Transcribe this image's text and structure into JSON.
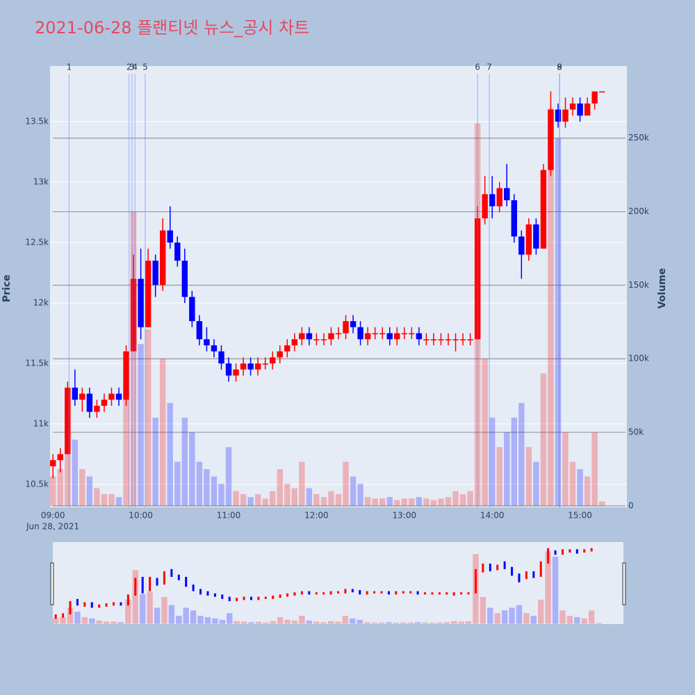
{
  "chart_data": {
    "type": "candlestick",
    "title": "2021-06-28 플랜티넷 뉴스_공시 차트",
    "y_label": "Price",
    "y2_label": "Volume",
    "x_date_label": "Jun 28, 2021",
    "increasing_color": "#ff0000",
    "decreasing_color": "#0000ff",
    "x": [
      "09:00",
      "09:05",
      "09:10",
      "09:15",
      "09:20",
      "09:25",
      "09:30",
      "09:35",
      "09:40",
      "09:45",
      "09:50",
      "09:55",
      "10:00",
      "10:05",
      "10:10",
      "10:15",
      "10:20",
      "10:25",
      "10:30",
      "10:35",
      "10:40",
      "10:45",
      "10:50",
      "10:55",
      "11:00",
      "11:05",
      "11:10",
      "11:15",
      "11:20",
      "11:25",
      "11:30",
      "11:35",
      "11:40",
      "11:45",
      "11:50",
      "11:55",
      "12:00",
      "12:05",
      "12:10",
      "12:15",
      "12:20",
      "12:25",
      "12:30",
      "12:35",
      "12:40",
      "12:45",
      "12:50",
      "12:55",
      "13:00",
      "13:05",
      "13:10",
      "13:15",
      "13:20",
      "13:25",
      "13:30",
      "13:35",
      "13:40",
      "13:45",
      "13:50",
      "13:55",
      "14:00",
      "14:05",
      "14:10",
      "14:15",
      "14:20",
      "14:25",
      "14:30",
      "14:35",
      "14:40",
      "14:45",
      "14:50",
      "14:55",
      "15:00",
      "15:05",
      "15:10",
      "15:15"
    ],
    "open": [
      10650,
      10700,
      10750,
      11300,
      11200,
      11250,
      11100,
      11150,
      11200,
      11250,
      11200,
      11600,
      12200,
      11800,
      12350,
      12150,
      12600,
      12500,
      12350,
      12050,
      11850,
      11700,
      11650,
      11600,
      11500,
      11400,
      11450,
      11500,
      11450,
      11500,
      11500,
      11550,
      11600,
      11650,
      11700,
      11750,
      11700,
      11700,
      11700,
      11750,
      11750,
      11850,
      11800,
      11700,
      11750,
      11750,
      11750,
      11700,
      11750,
      11750,
      11750,
      11700,
      11700,
      11700,
      11700,
      11700,
      11700,
      11700,
      11700,
      12700,
      12900,
      12800,
      12950,
      12850,
      12550,
      12400,
      12650,
      12450,
      13100,
      13600,
      13500,
      13600,
      13650,
      13550,
      13650,
      13750
    ],
    "high": [
      10750,
      10800,
      11350,
      11450,
      11300,
      11300,
      11200,
      11250,
      11300,
      11300,
      11650,
      12400,
      12450,
      12450,
      12400,
      12700,
      12800,
      12550,
      12450,
      12100,
      11900,
      11800,
      11700,
      11650,
      11550,
      11500,
      11550,
      11550,
      11550,
      11550,
      11600,
      11650,
      11700,
      11750,
      11800,
      11800,
      11750,
      11750,
      11800,
      11800,
      11900,
      11900,
      11850,
      11800,
      11800,
      11800,
      11800,
      11800,
      11800,
      11800,
      11800,
      11750,
      11750,
      11750,
      11750,
      11750,
      11750,
      11750,
      12800,
      13050,
      13050,
      13000,
      13150,
      12900,
      12600,
      12700,
      12700,
      13150,
      13750,
      13650,
      13700,
      13700,
      13700,
      13700,
      13750,
      13750
    ],
    "low": [
      10550,
      10600,
      10750,
      11150,
      11100,
      11050,
      11050,
      11100,
      11150,
      11150,
      11150,
      11600,
      11700,
      11800,
      12050,
      12100,
      12450,
      12300,
      12000,
      11800,
      11650,
      11600,
      11550,
      11450,
      11350,
      11350,
      11400,
      11400,
      11400,
      11450,
      11450,
      11500,
      11550,
      11600,
      11650,
      11650,
      11650,
      11650,
      11650,
      11700,
      11700,
      11750,
      11650,
      11650,
      11700,
      11700,
      11650,
      11650,
      11700,
      11700,
      11650,
      11650,
      11650,
      11650,
      11650,
      11600,
      11650,
      11650,
      11700,
      12650,
      12700,
      12750,
      12800,
      12500,
      12200,
      12350,
      12400,
      12450,
      13050,
      13450,
      13450,
      13550,
      13500,
      13550,
      13600,
      13750
    ],
    "close": [
      10700,
      10750,
      11300,
      11200,
      11250,
      11100,
      11150,
      11200,
      11250,
      11200,
      11600,
      12200,
      11800,
      12350,
      12150,
      12600,
      12500,
      12350,
      12050,
      11850,
      11700,
      11650,
      11600,
      11500,
      11400,
      11450,
      11500,
      11450,
      11500,
      11500,
      11550,
      11600,
      11650,
      11700,
      11750,
      11700,
      11700,
      11700,
      11750,
      11750,
      11850,
      11800,
      11700,
      11750,
      11750,
      11750,
      11700,
      11750,
      11750,
      11750,
      11700,
      11700,
      11700,
      11700,
      11700,
      11700,
      11700,
      11700,
      12700,
      12900,
      12800,
      12950,
      12850,
      12550,
      12400,
      12650,
      12450,
      13100,
      13600,
      13500,
      13600,
      13650,
      13550,
      13650,
      13750,
      13750
    ],
    "volume": [
      20000,
      25000,
      60000,
      45000,
      25000,
      20000,
      12000,
      8000,
      8000,
      6000,
      90000,
      200000,
      110000,
      120000,
      60000,
      100000,
      70000,
      30000,
      60000,
      50000,
      30000,
      25000,
      20000,
      15000,
      40000,
      10000,
      8000,
      6000,
      8000,
      5000,
      10000,
      25000,
      15000,
      12000,
      30000,
      12000,
      8000,
      6000,
      10000,
      8000,
      30000,
      20000,
      15000,
      6000,
      5000,
      5000,
      6000,
      4000,
      5000,
      5000,
      6000,
      5000,
      4000,
      5000,
      6000,
      10000,
      8000,
      10000,
      260000,
      100000,
      60000,
      40000,
      50000,
      60000,
      70000,
      40000,
      30000,
      90000,
      270000,
      250000,
      50000,
      30000,
      25000,
      20000,
      50000,
      3000
    ],
    "xlim": [
      "08:58",
      "15:32"
    ],
    "xticks": [
      "09:00",
      "10:00",
      "11:00",
      "12:00",
      "13:00",
      "14:00",
      "15:00"
    ],
    "ylim": [
      10310,
      13960
    ],
    "yticks": [
      {
        "value": 10500,
        "label": "10.5k"
      },
      {
        "value": 11000,
        "label": "11k"
      },
      {
        "value": 11500,
        "label": "11.5k"
      },
      {
        "value": 12000,
        "label": "12k"
      },
      {
        "value": 12500,
        "label": "12.5k"
      },
      {
        "value": 13000,
        "label": "13k"
      },
      {
        "value": 13500,
        "label": "13.5k"
      }
    ],
    "y2lim": [
      -1000,
      299000
    ],
    "y2ticks": [
      0,
      {
        "value": 50000,
        "label": "50k"
      },
      {
        "value": 100000,
        "label": "100k"
      },
      {
        "value": 150000,
        "label": "150k"
      },
      {
        "value": 200000,
        "label": "200k"
      },
      {
        "value": 250000,
        "label": "250k"
      }
    ],
    "annotations": [
      {
        "label": "1",
        "x": "09:11"
      },
      {
        "label": "2",
        "x": "09:52"
      },
      {
        "label": "3",
        "x": "09:54"
      },
      {
        "label": "4",
        "x": "09:56"
      },
      {
        "label": "5",
        "x": "10:03"
      },
      {
        "label": "6",
        "x": "13:50"
      },
      {
        "label": "7",
        "x": "13:58"
      },
      {
        "label": "8",
        "x": "14:46"
      },
      {
        "label": "9",
        "x": "14:46"
      }
    ]
  }
}
